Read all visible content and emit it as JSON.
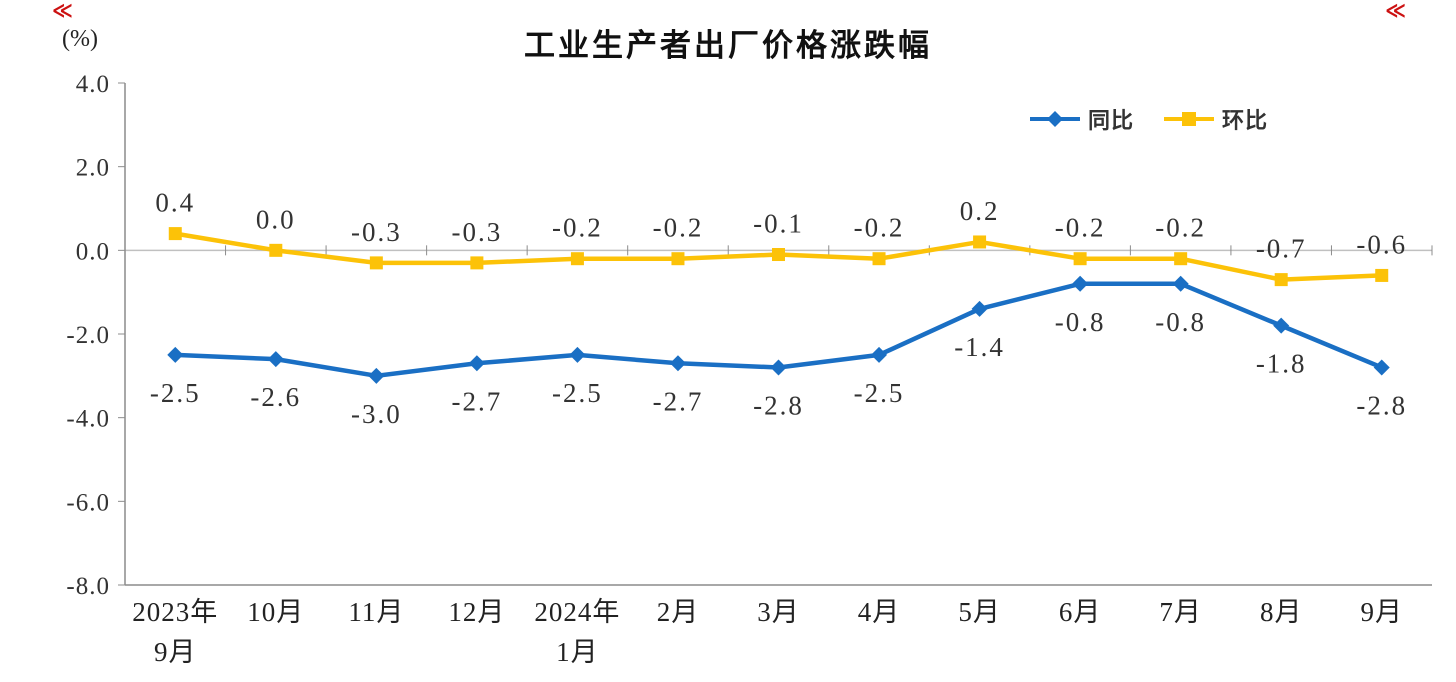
{
  "decorations": {
    "left_glyph": "≪",
    "right_glyph": "≪",
    "color": "#cc1111"
  },
  "chart_data": {
    "type": "line",
    "title": "工业生产者出厂价格涨跌幅",
    "unit_label": "(%)",
    "categories": [
      [
        "2023年",
        "9月"
      ],
      [
        "10月"
      ],
      [
        "11月"
      ],
      [
        "12月"
      ],
      [
        "2024年",
        "1月"
      ],
      [
        "2月"
      ],
      [
        "3月"
      ],
      [
        "4月"
      ],
      [
        "5月"
      ],
      [
        "6月"
      ],
      [
        "7月"
      ],
      [
        "8月"
      ],
      [
        "9月"
      ]
    ],
    "series": [
      {
        "name": "同比",
        "color": "#1a6fc4",
        "marker": "diamond",
        "label_position": "below",
        "values": [
          -2.5,
          -2.6,
          -3.0,
          -2.7,
          -2.5,
          -2.7,
          -2.8,
          -2.5,
          -1.4,
          -0.8,
          -0.8,
          -1.8,
          -2.8
        ]
      },
      {
        "name": "环比",
        "color": "#fcc208",
        "marker": "square",
        "label_position": "above",
        "values": [
          0.4,
          0.0,
          -0.3,
          -0.3,
          -0.2,
          -0.2,
          -0.1,
          -0.2,
          0.2,
          -0.2,
          -0.2,
          -0.7,
          -0.6
        ]
      }
    ],
    "ylim": [
      -8.0,
      4.0
    ],
    "yticks": [
      4.0,
      2.0,
      0.0,
      -2.0,
      -4.0,
      -6.0,
      -8.0
    ],
    "grid": "zero-line-only",
    "legend_position": "top-right",
    "axis_color": "#8c8c8c",
    "zero_line_color": "#c0c0c0"
  }
}
